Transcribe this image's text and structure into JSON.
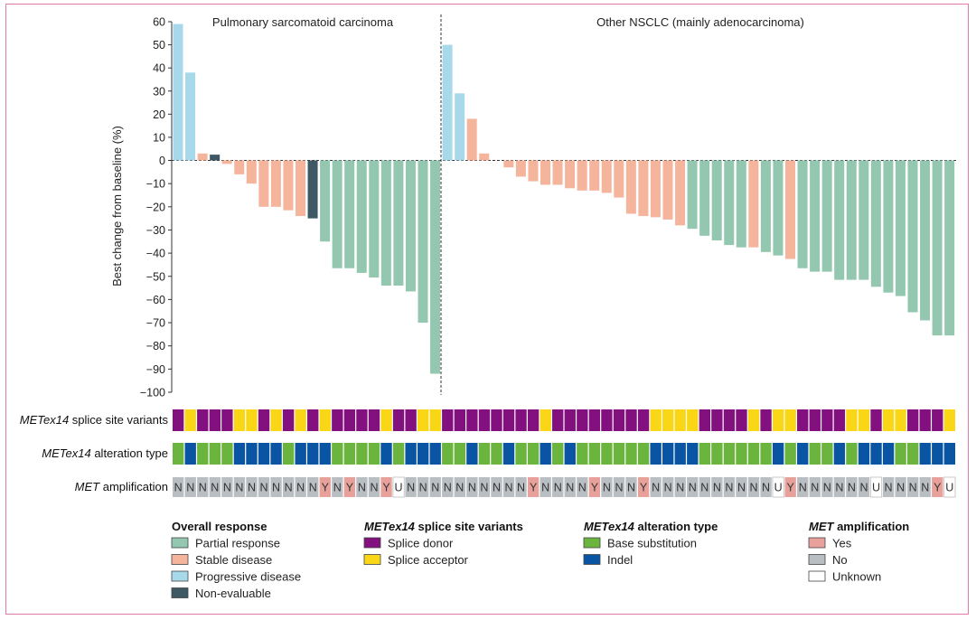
{
  "chart_data": {
    "type": "bar",
    "ylabel": "Best change from baseline (%)",
    "ylim": [
      -100,
      60
    ],
    "yticks": [
      60,
      50,
      40,
      30,
      20,
      10,
      0,
      -10,
      -20,
      -30,
      -40,
      -50,
      -60,
      -70,
      -80,
      -90,
      -100
    ],
    "panels": [
      {
        "title": "Pulmonary sarcomatoid carcinoma",
        "values": [
          59,
          38,
          3,
          2.5,
          -1.5,
          -6,
          -10,
          -20,
          -20,
          -21.5,
          -24,
          -25,
          -35,
          -46.5,
          -46.5,
          -48.5,
          -50.5,
          -54,
          -54,
          -56.5,
          -70,
          -92
        ],
        "response": [
          "PD",
          "PD",
          "SD",
          "NE",
          "SD",
          "SD",
          "SD",
          "SD",
          "SD",
          "SD",
          "SD",
          "NE",
          "PR",
          "PR",
          "PR",
          "PR",
          "PR",
          "PR",
          "PR",
          "PR",
          "PR",
          "PR"
        ]
      },
      {
        "title": "Other NSCLC (mainly adenocarcinoma)",
        "values": [
          50,
          29,
          18,
          3,
          0,
          -3,
          -7,
          -9,
          -10.5,
          -10.5,
          -12,
          -13,
          -13,
          -14,
          -16,
          -23,
          -24,
          -24.5,
          -25.5,
          -28,
          -29.5,
          -32.5,
          -34.5,
          -36.5,
          -37.5,
          -37.5,
          -39.5,
          -41,
          -42.5,
          -46.5,
          -48,
          -48,
          -51.5,
          -51.5,
          -51.5,
          -54.5,
          -57,
          -58.5,
          -65.5,
          -69,
          -75.5,
          -75.5
        ],
        "response": [
          "PD",
          "PD",
          "SD",
          "SD",
          "SD",
          "SD",
          "SD",
          "SD",
          "SD",
          "SD",
          "SD",
          "SD",
          "SD",
          "SD",
          "SD",
          "SD",
          "SD",
          "SD",
          "SD",
          "SD",
          "PR",
          "PR",
          "PR",
          "PR",
          "PR",
          "SD",
          "PR",
          "PR",
          "SD",
          "PR",
          "PR",
          "PR",
          "PR",
          "PR",
          "PR",
          "PR",
          "PR",
          "PR",
          "PR",
          "PR",
          "PR",
          "PR"
        ]
      }
    ],
    "splice_site_variants": [
      "D",
      "A",
      "D",
      "D",
      "D",
      "A",
      "A",
      "D",
      "A",
      "D",
      "A",
      "D",
      "A",
      "D",
      "D",
      "D",
      "D",
      "A",
      "D",
      "D",
      "A",
      "A",
      "D",
      "D",
      "D",
      "D",
      "D",
      "D",
      "D",
      "D",
      "A",
      "D",
      "D",
      "D",
      "D",
      "D",
      "D",
      "D",
      "D",
      "A",
      "A",
      "A",
      "A",
      "D",
      "D",
      "D",
      "D",
      "A",
      "D",
      "A",
      "A",
      "D",
      "D",
      "D",
      "D",
      "A",
      "A",
      "D",
      "A",
      "A",
      "D",
      "D",
      "D",
      "A"
    ],
    "alteration_type": [
      "B",
      "I",
      "B",
      "B",
      "B",
      "I",
      "I",
      "I",
      "I",
      "B",
      "I",
      "I",
      "I",
      "B",
      "B",
      "B",
      "B",
      "I",
      "B",
      "I",
      "I",
      "I",
      "B",
      "B",
      "I",
      "B",
      "B",
      "I",
      "B",
      "B",
      "I",
      "B",
      "I",
      "B",
      "B",
      "B",
      "B",
      "B",
      "B",
      "I",
      "I",
      "I",
      "I",
      "B",
      "B",
      "B",
      "B",
      "B",
      "B",
      "I",
      "B",
      "I",
      "B",
      "B",
      "I",
      "B",
      "I",
      "I",
      "I",
      "B",
      "B",
      "I",
      "I",
      "I"
    ],
    "amplification": [
      "N",
      "N",
      "N",
      "N",
      "N",
      "N",
      "N",
      "N",
      "N",
      "N",
      "N",
      "N",
      "Y",
      "N",
      "Y",
      "N",
      "N",
      "Y",
      "U",
      "N",
      "N",
      "N",
      "N",
      "N",
      "N",
      "N",
      "N",
      "N",
      "N",
      "Y",
      "N",
      "N",
      "N",
      "N",
      "Y",
      "N",
      "N",
      "N",
      "Y",
      "N",
      "N",
      "N",
      "N",
      "N",
      "N",
      "N",
      "N",
      "N",
      "N",
      "U",
      "Y",
      "N",
      "N",
      "N",
      "N",
      "N",
      "N",
      "U",
      "N",
      "N",
      "N",
      "N",
      "Y",
      "U"
    ],
    "row_labels": {
      "splice": {
        "italic": "METex14",
        "rest": " splice site variants"
      },
      "alteration": {
        "italic": "METex14",
        "rest": " alteration type"
      },
      "amplification": {
        "italic": "MET",
        "rest": " amplification"
      }
    }
  },
  "legend": {
    "response": {
      "title": "Overall response",
      "items": [
        {
          "code": "PR",
          "label": "Partial response",
          "color": "#93c7b0"
        },
        {
          "code": "SD",
          "label": "Stable disease",
          "color": "#f5b49c"
        },
        {
          "code": "PD",
          "label": "Progressive disease",
          "color": "#a8d9eb"
        },
        {
          "code": "NE",
          "label": "Non-evaluable",
          "color": "#3e5864"
        }
      ]
    },
    "splice": {
      "title_italic": "METex14",
      "title_rest": " splice site variants",
      "items": [
        {
          "code": "D",
          "label": "Splice donor",
          "color": "#82107e"
        },
        {
          "code": "A",
          "label": "Splice acceptor",
          "color": "#f9d616"
        }
      ]
    },
    "alteration": {
      "title_italic": "METex14",
      "title_rest": " alteration type",
      "items": [
        {
          "code": "B",
          "label": "Base substitution",
          "color": "#6bb53e"
        },
        {
          "code": "I",
          "label": "Indel",
          "color": "#0a55a3"
        }
      ]
    },
    "amplification": {
      "title_italic": "MET",
      "title_rest": " amplification",
      "items": [
        {
          "code": "Y",
          "label": "Yes",
          "color": "#e7a19a"
        },
        {
          "code": "N",
          "label": "No",
          "color": "#b9bec2"
        },
        {
          "code": "U",
          "label": "Unknown",
          "color": "#ffffff"
        }
      ]
    }
  }
}
